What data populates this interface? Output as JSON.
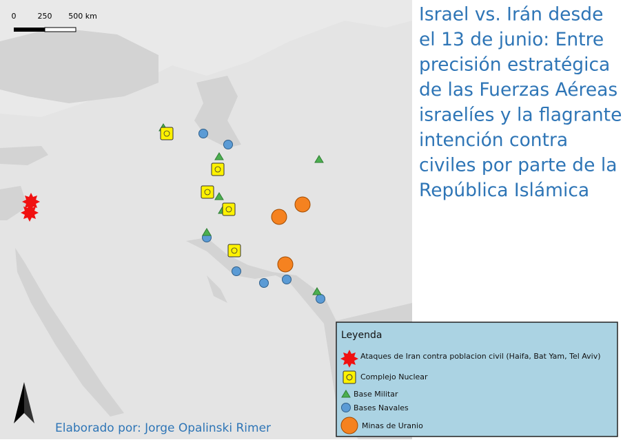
{
  "map": {
    "title_lines": [
      "Israel vs. Irán desde",
      "el 13 de junio: Entre",
      "precisión estratégica",
      "de las Fuerzas Aéreas",
      "israelíes y la flagrante",
      "intención contra",
      "civiles por parte de la",
      "República Islámica"
    ],
    "scale_labels": [
      "0",
      "250",
      "500 km"
    ],
    "legend": {
      "title": "Leyenda",
      "items": [
        "Ataques de Iran contra poblacion civil (Haifa, Bat Yam, Tel Aviv)",
        "Complejo Nuclear",
        "Base Militar",
        "Bases Navales",
        "Minas de Uranio"
      ]
    },
    "credit": "Elaborado por: Jorge Opalinski Rimer"
  }
}
